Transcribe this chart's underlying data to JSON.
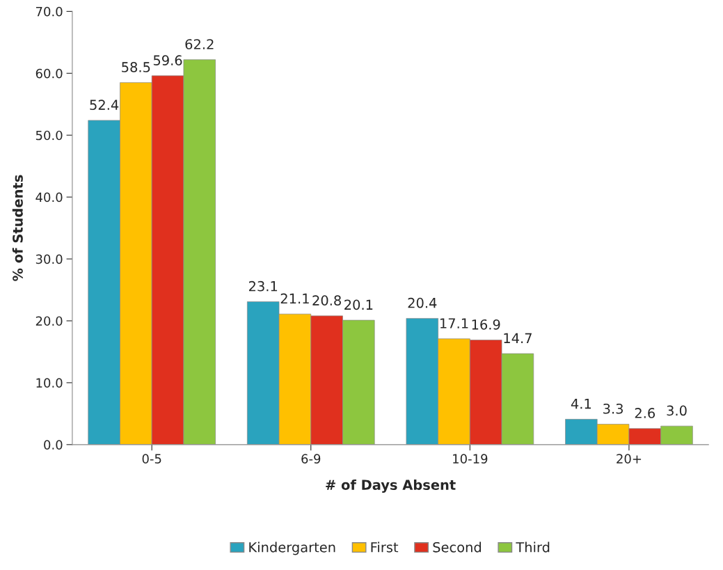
{
  "chart_data": {
    "type": "bar",
    "xlabel": "# of Days Absent",
    "ylabel": "% of Students",
    "categories": [
      "0-5",
      "6-9",
      "10-19",
      "20+"
    ],
    "series": [
      {
        "name": "Kindergarten",
        "color": "#2aa3be",
        "values": [
          52.4,
          23.1,
          20.4,
          4.1
        ],
        "value_labels": [
          "52.4",
          "23.1",
          "20.4",
          "4.1"
        ]
      },
      {
        "name": "First",
        "color": "#ffc000",
        "values": [
          58.5,
          21.1,
          17.1,
          3.3
        ],
        "value_labels": [
          "58.5",
          "21.1",
          "17.1",
          "3.3"
        ]
      },
      {
        "name": "Second",
        "color": "#e0301e",
        "values": [
          59.6,
          20.8,
          16.9,
          2.6
        ],
        "value_labels": [
          "59.6",
          "20.8",
          "16.9",
          "2.6"
        ]
      },
      {
        "name": "Third",
        "color": "#8dc63f",
        "values": [
          62.2,
          20.1,
          14.7,
          3.0
        ],
        "value_labels": [
          "62.2",
          "20.1",
          "14.7",
          "3.0"
        ]
      }
    ],
    "ylim": [
      0,
      70
    ],
    "yticks": [
      {
        "value": 0,
        "label": "0.0"
      },
      {
        "value": 10,
        "label": "10.0"
      },
      {
        "value": 20,
        "label": "20.0"
      },
      {
        "value": 30,
        "label": "30.0"
      },
      {
        "value": 40,
        "label": "40.0"
      },
      {
        "value": 50,
        "label": "50.0"
      },
      {
        "value": 60,
        "label": "60.0"
      },
      {
        "value": 70,
        "label": "70.0"
      }
    ],
    "grid": false,
    "legend": "bottom"
  }
}
